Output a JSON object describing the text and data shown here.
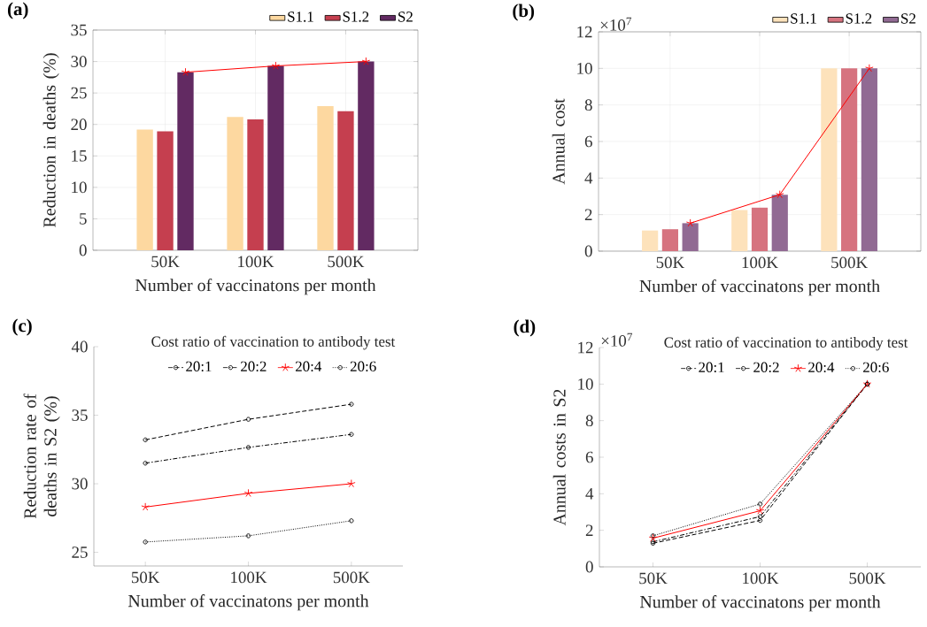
{
  "chart_data": [
    {
      "type": "bar",
      "title": "(a)",
      "xlabel": "Number of vaccinatons per month",
      "ylabel": "Reduction in deaths (%)",
      "categories": [
        "50K",
        "100K",
        "500K"
      ],
      "ylim": [
        0,
        35
      ],
      "yticks": [
        0,
        5,
        10,
        15,
        20,
        25,
        30,
        35
      ],
      "grid": true,
      "legend": "top right",
      "series": [
        {
          "name": "S1.1",
          "color": "#fdd8a0",
          "values": [
            19.2,
            21.2,
            22.9
          ]
        },
        {
          "name": "S1.2",
          "color": "#c53f4f",
          "values": [
            18.9,
            20.8,
            22.1
          ]
        },
        {
          "name": "S2",
          "color": "#622a62",
          "values": [
            28.3,
            29.3,
            30.0
          ]
        },
        {
          "type": "line",
          "color": "#ff0000",
          "marker": "cross",
          "values": [
            28.3,
            29.3,
            30.0
          ]
        }
      ]
    },
    {
      "type": "bar",
      "title": "(b)",
      "xlabel": "Number of vaccinatons per month",
      "ylabel": "Annual cost",
      "annotations": [
        "×10$^{7}$"
      ],
      "categories": [
        "50K",
        "100K",
        "500K"
      ],
      "ylim": [
        0,
        12
      ],
      "yticks": [
        0,
        2,
        4,
        6,
        8,
        10,
        12
      ],
      "grid": true,
      "legend": "top right",
      "series": [
        {
          "name": "S1.1",
          "color": "#fde2bb",
          "values": [
            1.13,
            2.25,
            10
          ]
        },
        {
          "name": "S1.2",
          "color": "#d6737f",
          "values": [
            1.2,
            2.38,
            10
          ]
        },
        {
          "name": "S2",
          "color": "#916a93",
          "values": [
            1.53,
            3.09,
            10
          ]
        },
        {
          "type": "line",
          "color": "#ff0000",
          "marker": "cross",
          "values": [
            1.53,
            3.09,
            10
          ]
        }
      ]
    },
    {
      "type": "line",
      "title": "(c)",
      "xlabel": "Number of vaccinatons per month",
      "ylabel": "Reduction rate of deaths in S2 (%)",
      "legend_title": "Cost ratio of vaccination to antibody test",
      "categories": [
        "50K",
        "100K",
        "500K"
      ],
      "ylim": [
        24,
        40
      ],
      "yticks": [
        25,
        30,
        35,
        40
      ],
      "legend": "top",
      "series": [
        {
          "name": "20:1",
          "color": "#000000",
          "marker": "circle",
          "line_style": "dashed",
          "values": [
            33.2,
            34.7,
            35.8
          ]
        },
        {
          "name": "20:2",
          "color": "#000000",
          "marker": "circle",
          "line_style": "dashdot",
          "values": [
            31.5,
            32.65,
            33.6
          ]
        },
        {
          "name": "20:4",
          "color": "#ff0000",
          "marker": "cross",
          "line_style": "solid",
          "values": [
            28.3,
            29.3,
            30.0
          ]
        },
        {
          "name": "20:6",
          "color": "#000000",
          "marker": "circle",
          "line_style": "dotted",
          "values": [
            25.75,
            26.2,
            27.3
          ]
        }
      ]
    },
    {
      "type": "line",
      "title": "(d)",
      "xlabel": "Number of vaccinatons per month",
      "ylabel": "Annual costs in S2",
      "legend_title": "Cost ratio of vaccination to antibody test",
      "annotations": [
        "×10$^{7}$"
      ],
      "categories": [
        "50K",
        "100K",
        "500K"
      ],
      "ylim": [
        0,
        12
      ],
      "yticks": [
        0,
        2,
        4,
        6,
        8,
        10,
        12
      ],
      "legend": "top",
      "series": [
        {
          "name": "20:1",
          "color": "#000000",
          "marker": "circle",
          "line_style": "dashed",
          "values": [
            1.29,
            2.54,
            10
          ]
        },
        {
          "name": "20:2",
          "color": "#000000",
          "marker": "circle",
          "line_style": "dashdot",
          "values": [
            1.37,
            2.75,
            10
          ]
        },
        {
          "name": "20:4",
          "color": "#ff0000",
          "marker": "cross",
          "line_style": "solid",
          "values": [
            1.57,
            3.07,
            10
          ]
        },
        {
          "name": "20:6",
          "color": "#000000",
          "marker": "circle",
          "line_style": "dotted",
          "values": [
            1.7,
            3.44,
            10
          ]
        }
      ]
    }
  ]
}
